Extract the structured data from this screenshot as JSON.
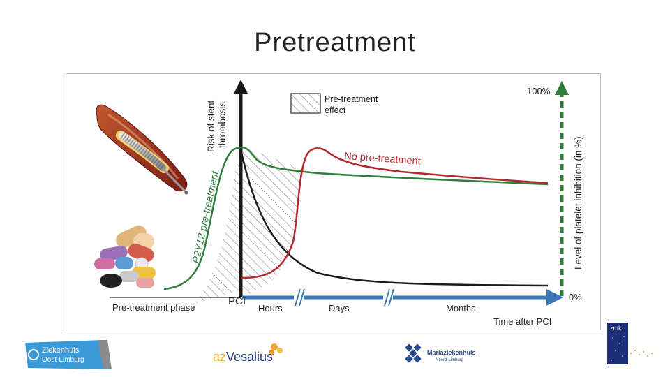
{
  "slide": {
    "title": "Pretreatment"
  },
  "diagram": {
    "left_axis_label_1": "Risk of stent",
    "left_axis_label_2": "thrombosis",
    "right_axis_label": "Level of platelet inhibition (in %)",
    "right_axis_top": "100%",
    "right_axis_bottom": "0%",
    "legend_label_1": "Pre-treatment",
    "legend_label_2": "effect",
    "curve_label_pretreatment": "P2Y12 pre-treatment",
    "curve_label_no_pretreatment": "No pre-treatment",
    "timeline": {
      "phase": "Pre-treatment phase",
      "pci": "PCI",
      "hours": "Hours",
      "days": "Days",
      "months": "Months",
      "caption": "Time after PCI"
    },
    "colors": {
      "green": "#2e7d3a",
      "red": "#b3262b",
      "blue": "#3a77b8",
      "black": "#1a1a1a"
    },
    "icons": [
      "stented-artery-icon",
      "pills-icon"
    ]
  },
  "logos": {
    "zol_line1": "Ziekenhuis",
    "zol_line2": "Oost-Limburg",
    "vesalius_prefix": "az",
    "vesalius_name": "Vesalius",
    "maria": "Mariaziekenhuis",
    "maria_sub": "Noord-Limburg",
    "zmk": "zmk"
  }
}
